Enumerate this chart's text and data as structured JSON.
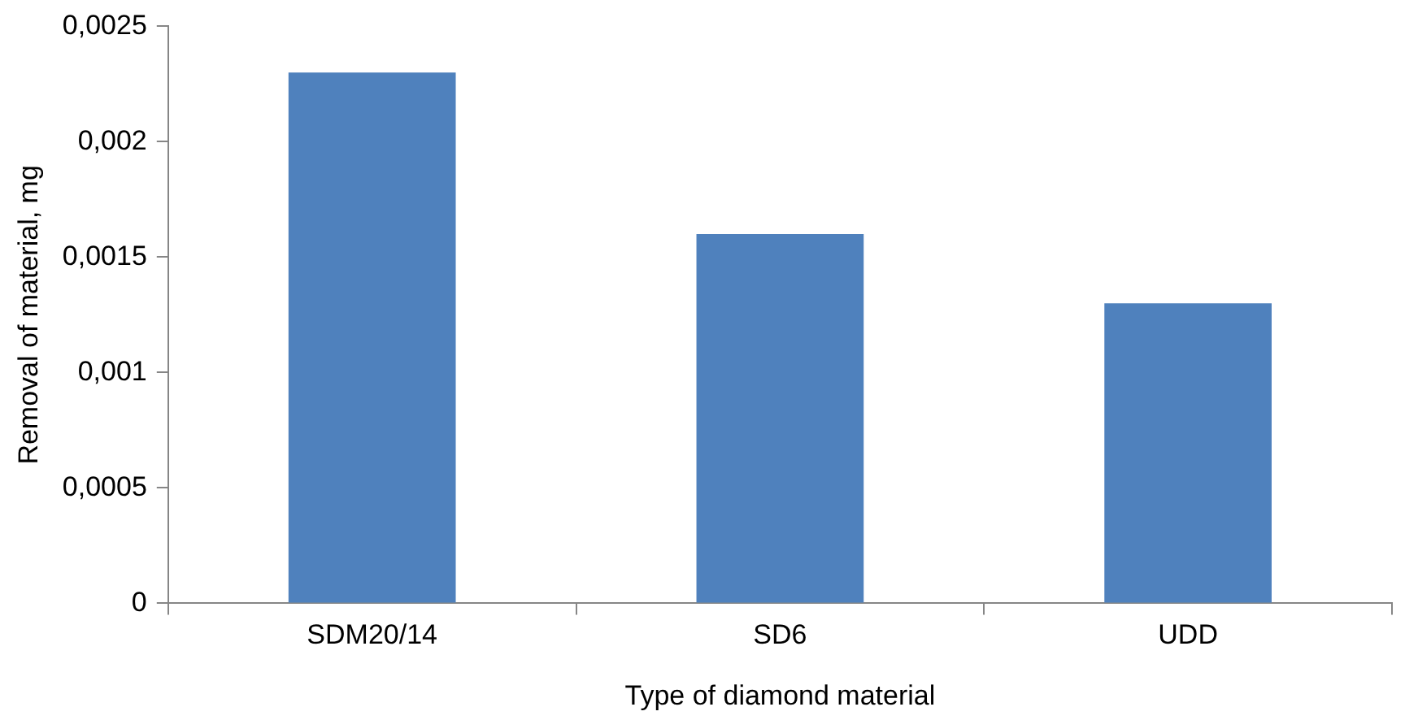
{
  "chart_data": {
    "type": "bar",
    "xlabel": "Type of diamond material",
    "ylabel": "Removal of material, mg",
    "categories": [
      "SDM20/14",
      "SD6",
      "UDD"
    ],
    "series": [
      {
        "color": "#4f81bd",
        "values": [
          0.0023,
          0.0016,
          0.0013
        ]
      }
    ],
    "ylim": [
      0,
      0.0025
    ],
    "yticks": [
      0,
      {
        "value": 0.0005,
        "label": "0,0005"
      },
      {
        "value": 0.001,
        "label": "0,001"
      },
      {
        "value": 0.0015,
        "label": "0,0015"
      },
      {
        "value": 0.002,
        "label": "0,002"
      },
      {
        "value": 0.0025,
        "label": "0,0025"
      }
    ],
    "grid": false,
    "legend": false
  }
}
